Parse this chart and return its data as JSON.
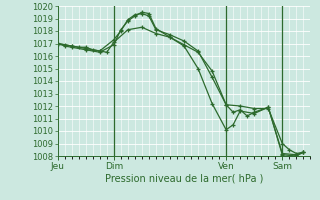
{
  "bg_color": "#cce8e0",
  "grid_color": "#b0d8d0",
  "line_color": "#2d6a2d",
  "title": "Pression niveau de la mer( hPa )",
  "ylim": [
    1008,
    1020
  ],
  "yticks": [
    1008,
    1009,
    1010,
    1011,
    1012,
    1013,
    1014,
    1015,
    1016,
    1017,
    1018,
    1019,
    1020
  ],
  "xtick_labels": [
    "Jeu",
    "Dim",
    "Ven",
    "Sam"
  ],
  "xtick_positions": [
    0,
    8,
    24,
    32
  ],
  "vlines": [
    8,
    24,
    32
  ],
  "xlim": [
    0,
    36
  ],
  "series1_x": [
    0,
    1,
    2,
    3,
    4,
    5,
    6,
    7,
    8,
    10,
    12,
    14,
    16,
    18,
    20,
    22,
    24,
    26,
    28,
    30,
    32,
    33,
    34,
    35
  ],
  "series1_y": [
    1017.0,
    1016.9,
    1016.8,
    1016.7,
    1016.7,
    1016.5,
    1016.4,
    1016.3,
    1017.1,
    1018.1,
    1018.3,
    1017.8,
    1017.5,
    1016.9,
    1016.3,
    1014.8,
    1012.1,
    1012.0,
    1011.8,
    1011.8,
    1009.0,
    1008.5,
    1008.2,
    1008.3
  ],
  "series2_x": [
    0,
    2,
    4,
    6,
    8,
    9,
    10,
    11,
    12,
    13,
    14,
    16,
    18,
    20,
    22,
    24,
    25,
    26,
    27,
    28,
    30,
    32,
    34,
    35
  ],
  "series2_y": [
    1017.0,
    1016.8,
    1016.6,
    1016.4,
    1017.3,
    1018.0,
    1018.9,
    1019.3,
    1019.4,
    1019.2,
    1018.1,
    1017.7,
    1017.2,
    1016.4,
    1014.3,
    1012.1,
    1011.5,
    1011.7,
    1011.2,
    1011.5,
    1011.9,
    1008.1,
    1008.0,
    1008.3
  ],
  "series3_x": [
    0,
    1,
    2,
    4,
    6,
    8,
    9,
    10,
    11,
    12,
    13,
    14,
    16,
    18,
    20,
    22,
    24,
    25,
    26,
    28,
    30,
    32,
    34,
    35
  ],
  "series3_y": [
    1017.0,
    1016.8,
    1016.7,
    1016.5,
    1016.3,
    1016.9,
    1018.1,
    1018.8,
    1019.2,
    1019.5,
    1019.4,
    1018.2,
    1017.5,
    1016.8,
    1015.0,
    1012.2,
    1010.1,
    1010.5,
    1011.6,
    1011.4,
    1011.9,
    1008.2,
    1008.1,
    1008.3
  ]
}
